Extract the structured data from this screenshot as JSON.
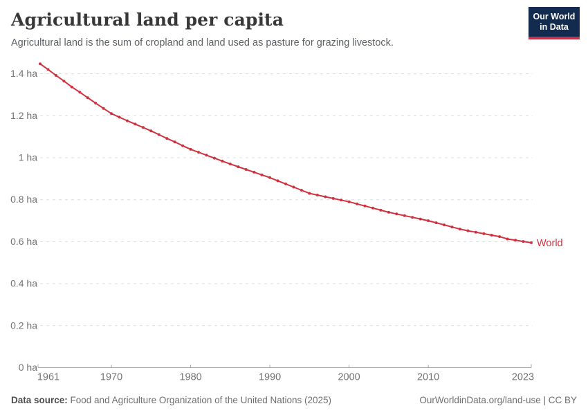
{
  "header": {
    "title": "Agricultural land per capita",
    "subtitle": "Agricultural land is the sum of cropland and land used as pasture for grazing livestock."
  },
  "logo": {
    "line1": "Our World",
    "line2": "in Data",
    "bg_color": "#122b4e",
    "accent_color": "#c0344a"
  },
  "footer": {
    "source_label": "Data source:",
    "source_text": " Food and Agriculture Organization of the United Nations (2025)",
    "link_text": "OurWorldinData.org/land-use",
    "separator": " | ",
    "license_text": "CC BY"
  },
  "chart_data": {
    "type": "line",
    "title": "Agricultural land per capita",
    "unit": "ha",
    "grid": "dashed",
    "legend_position": "end-of-line",
    "end_label": "World",
    "xlim": [
      1961,
      2023
    ],
    "ylim": [
      0,
      1.45
    ],
    "xticks": [
      1961,
      1970,
      1980,
      1990,
      2000,
      2010,
      2023
    ],
    "yticks": [
      0,
      0.2,
      0.4,
      0.6,
      0.8,
      1,
      1.2,
      1.4
    ],
    "ytick_labels": [
      "0 ha",
      "0.2 ha",
      "0.4 ha",
      "0.6 ha",
      "0.8 ha",
      "1 ha",
      "1.2 ha",
      "1.4 ha"
    ],
    "x": [
      1961,
      1962,
      1963,
      1964,
      1965,
      1966,
      1967,
      1968,
      1969,
      1970,
      1971,
      1972,
      1973,
      1974,
      1975,
      1976,
      1977,
      1978,
      1979,
      1980,
      1981,
      1982,
      1983,
      1984,
      1985,
      1986,
      1987,
      1988,
      1989,
      1990,
      1991,
      1992,
      1993,
      1994,
      1995,
      1996,
      1997,
      1998,
      1999,
      2000,
      2001,
      2002,
      2003,
      2004,
      2005,
      2006,
      2007,
      2008,
      2009,
      2010,
      2011,
      2012,
      2013,
      2014,
      2015,
      2016,
      2017,
      2018,
      2019,
      2020,
      2021,
      2022,
      2023
    ],
    "series": [
      {
        "name": "World",
        "color": "#cf323f",
        "values": [
          1.447,
          1.42,
          1.392,
          1.365,
          1.337,
          1.312,
          1.286,
          1.26,
          1.235,
          1.21,
          1.193,
          1.176,
          1.16,
          1.144,
          1.128,
          1.11,
          1.092,
          1.075,
          1.057,
          1.04,
          1.026,
          1.012,
          0.998,
          0.984,
          0.97,
          0.957,
          0.944,
          0.931,
          0.918,
          0.905,
          0.89,
          0.875,
          0.86,
          0.845,
          0.83,
          0.822,
          0.814,
          0.806,
          0.798,
          0.79,
          0.78,
          0.77,
          0.76,
          0.75,
          0.74,
          0.732,
          0.724,
          0.716,
          0.708,
          0.7,
          0.69,
          0.68,
          0.67,
          0.66,
          0.652,
          0.645,
          0.638,
          0.631,
          0.624,
          0.613,
          0.607,
          0.601,
          0.595
        ]
      }
    ],
    "style": {
      "gridline_color": "#dcdcdc",
      "axis_color": "#a8a8a8",
      "tick_label_color": "#737373"
    }
  }
}
